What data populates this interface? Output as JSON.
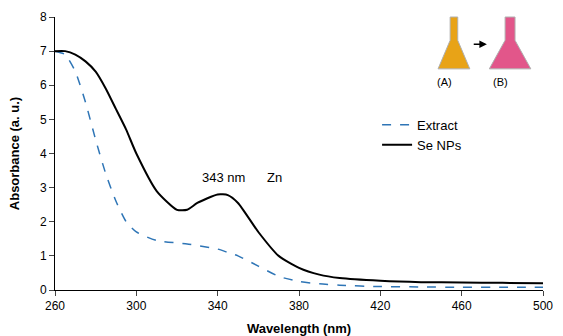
{
  "chart_data": {
    "type": "line",
    "x_label": "Wavelength (nm)",
    "y_label": "Absorbance (a. u.)",
    "x": [
      260,
      265,
      270,
      275,
      280,
      285,
      290,
      295,
      300,
      310,
      320,
      325,
      330,
      340,
      345,
      350,
      360,
      370,
      380,
      390,
      400,
      420,
      440,
      460,
      480,
      500
    ],
    "series": [
      {
        "name": "Extract",
        "color": "#2e75b6",
        "line_style": "dash",
        "values": [
          7.0,
          6.9,
          6.4,
          5.5,
          4.4,
          3.4,
          2.6,
          2.0,
          1.7,
          1.45,
          1.38,
          1.35,
          1.3,
          1.2,
          1.1,
          1.0,
          0.7,
          0.4,
          0.25,
          0.18,
          0.14,
          0.1,
          0.09,
          0.08,
          0.08,
          0.08
        ]
      },
      {
        "name": "Se NPs",
        "color": "#000000",
        "line_style": "solid",
        "values": [
          7.0,
          7.0,
          6.9,
          6.7,
          6.4,
          5.9,
          5.3,
          4.7,
          4.0,
          2.9,
          2.35,
          2.35,
          2.55,
          2.8,
          2.78,
          2.55,
          1.7,
          1.0,
          0.65,
          0.45,
          0.35,
          0.27,
          0.23,
          0.22,
          0.21,
          0.2
        ]
      }
    ],
    "xlim": [
      260,
      500
    ],
    "xticks": [
      260,
      300,
      340,
      380,
      420,
      460,
      500
    ],
    "ylim": [
      0,
      8
    ],
    "yticks": [
      0,
      1,
      2,
      3,
      4,
      5,
      6,
      7,
      8
    ],
    "grid": false,
    "legend": "right",
    "annotations": [
      {
        "text": "343 nm",
        "x": 343,
        "y": 3.3
      },
      {
        "text": "Zn",
        "x": 368,
        "y": 3.3
      }
    ],
    "inset_labels": [
      "(A)",
      "(B)"
    ]
  }
}
